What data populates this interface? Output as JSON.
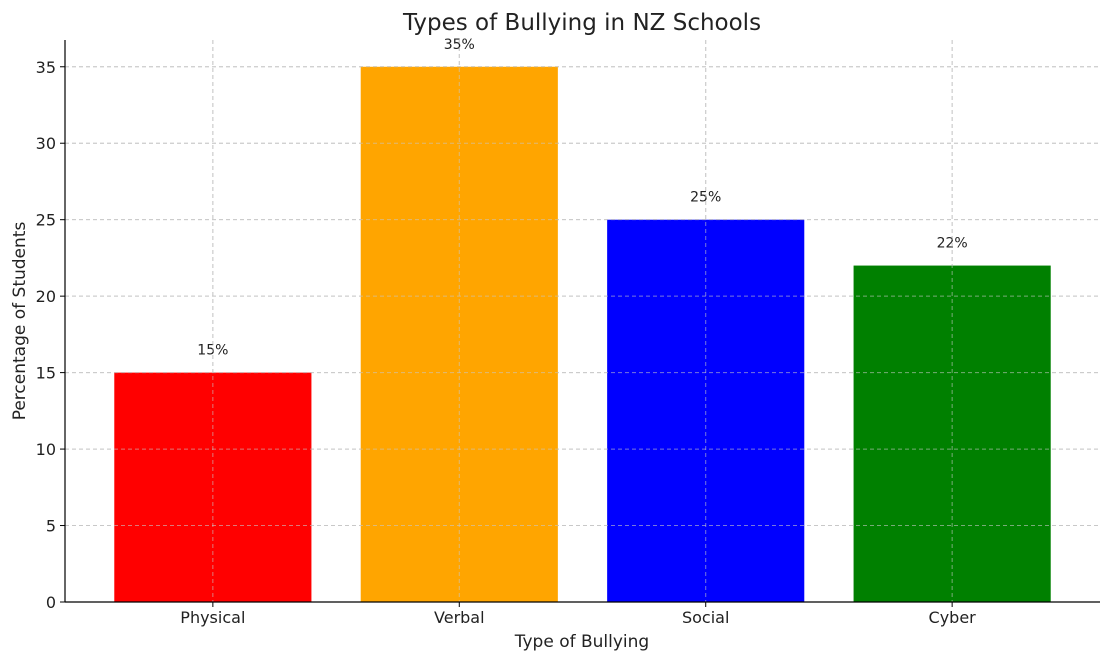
{
  "chart_data": {
    "type": "bar",
    "title": "Types of Bullying in NZ Schools",
    "xlabel": "Type of Bullying",
    "ylabel": "Percentage of Students",
    "categories": [
      "Physical",
      "Verbal",
      "Social",
      "Cyber"
    ],
    "values": [
      15,
      35,
      25,
      22
    ],
    "data_labels": [
      "15%",
      "35%",
      "25%",
      "22%"
    ],
    "colors": [
      "#ff0000",
      "#ffa500",
      "#0000ff",
      "#008000"
    ],
    "ylim": [
      0,
      36.75
    ],
    "yticks": [
      0,
      5,
      10,
      15,
      20,
      25,
      30,
      35
    ],
    "grid": true
  }
}
